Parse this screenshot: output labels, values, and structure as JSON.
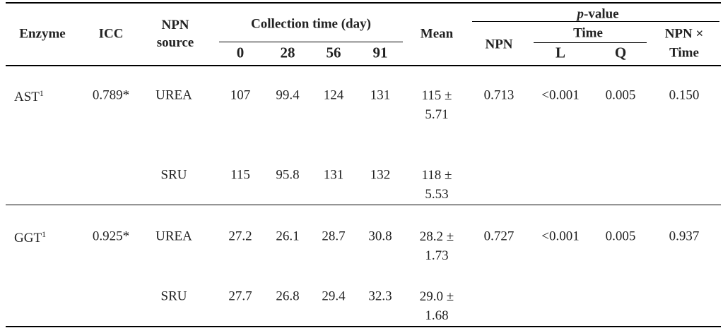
{
  "header": {
    "enzyme": "Enzyme",
    "icc": "ICC",
    "npn_source": "NPN source",
    "collection_time": "Collection time (day)",
    "days": [
      "0",
      "28",
      "56",
      "91"
    ],
    "mean": "Mean",
    "p_value_italic": "p",
    "p_value_rest": "-value",
    "npn": "NPN",
    "time": "Time",
    "linear": "L",
    "quadratic": "Q",
    "npn_time_1": "NPN ×",
    "npn_time_2": "Time"
  },
  "rows": [
    {
      "enzyme": "AST",
      "footnote": "1",
      "icc": "0.789*",
      "source": "UREA",
      "values": [
        "107",
        "99.4",
        "124",
        "131"
      ],
      "mean": "115 ± 5.71",
      "npn": "0.713",
      "l": "<0.001",
      "q": "0.005",
      "npn_time": "0.150"
    },
    {
      "source": "SRU",
      "values": [
        "115",
        "95.8",
        "131",
        "132"
      ],
      "mean": "118 ± 5.53"
    },
    {
      "enzyme": "GGT",
      "footnote": "1",
      "icc": "0.925*",
      "source": "UREA",
      "values": [
        "27.2",
        "26.1",
        "28.7",
        "30.8"
      ],
      "mean": "28.2 ± 1.73",
      "npn": "0.727",
      "l": "<0.001",
      "q": "0.005",
      "npn_time": "0.937"
    },
    {
      "source": "SRU",
      "values": [
        "27.7",
        "26.8",
        "29.4",
        "32.3"
      ],
      "mean": "29.0 ± 1.68"
    }
  ]
}
